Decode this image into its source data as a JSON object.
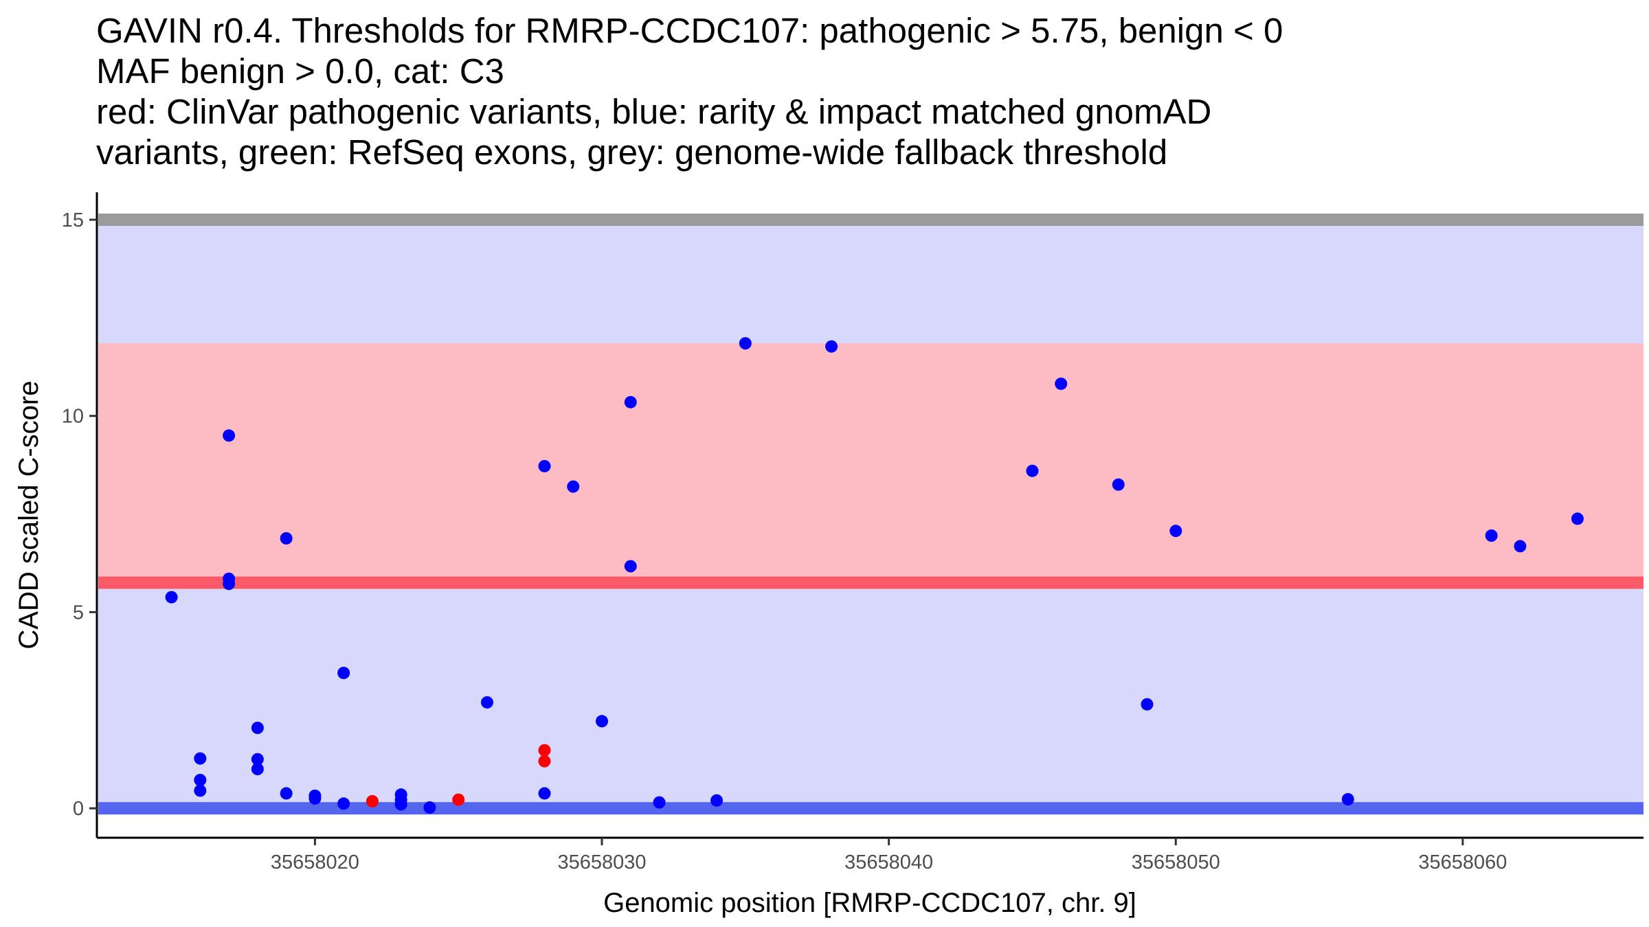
{
  "chart_data": {
    "type": "scatter",
    "title_lines": [
      "GAVIN r0.4. Thresholds for RMRP-CCDC107: pathogenic > 5.75, benign < 0",
      "MAF benign > 0.0, cat: C3",
      "red: ClinVar pathogenic variants, blue: rarity & impact matched gnomAD",
      "variants, green: RefSeq exons, grey: genome-wide fallback threshold"
    ],
    "xlabel": "Genomic position [RMRP-CCDC107, chr. 9]",
    "ylabel": "CADD scaled C-score",
    "xlim": [
      35658012.4,
      35658066.3
    ],
    "ylim": [
      -0.75,
      15.7
    ],
    "x_ticks": [
      35658020,
      35658030,
      35658040,
      35658050,
      35658060
    ],
    "x_tick_labels": [
      "35658020",
      "35658030",
      "35658040",
      "35658050",
      "35658060"
    ],
    "y_ticks": [
      0,
      5,
      10,
      15
    ],
    "y_tick_labels": [
      "0",
      "5",
      "10",
      "15"
    ],
    "bands": [
      {
        "name": "benign-zone",
        "y_from": 0,
        "y_to": 15,
        "color": "#d7d8fb"
      },
      {
        "name": "pathogenic-range",
        "y_from": 5.75,
        "y_to": 11.85,
        "color": "#fdbcc4"
      }
    ],
    "threshold_lines": [
      {
        "name": "genome-wide-fallback-threshold",
        "y": 15,
        "color": "#9b9b9b"
      },
      {
        "name": "pathogenic-threshold",
        "y": 5.75,
        "color": "#fc5a69"
      },
      {
        "name": "benign-threshold",
        "y": 0,
        "color": "#5566ee"
      }
    ],
    "series": [
      {
        "name": "ClinVar pathogenic variants",
        "color": "#ff0000",
        "points": [
          {
            "x": 35658022,
            "y": 0.18
          },
          {
            "x": 35658025,
            "y": 0.22
          },
          {
            "x": 35658028,
            "y": 1.48
          },
          {
            "x": 35658028,
            "y": 1.2
          }
        ]
      },
      {
        "name": "rarity & impact matched gnomAD variants",
        "color": "#0000ff",
        "points": [
          {
            "x": 35658015,
            "y": 5.38
          },
          {
            "x": 35658016,
            "y": 1.27
          },
          {
            "x": 35658016,
            "y": 0.72
          },
          {
            "x": 35658016,
            "y": 0.45
          },
          {
            "x": 35658017,
            "y": 9.5
          },
          {
            "x": 35658017,
            "y": 5.85
          },
          {
            "x": 35658017,
            "y": 5.72
          },
          {
            "x": 35658018,
            "y": 2.05
          },
          {
            "x": 35658018,
            "y": 1.25
          },
          {
            "x": 35658018,
            "y": 1.0
          },
          {
            "x": 35658019,
            "y": 6.88
          },
          {
            "x": 35658019,
            "y": 0.38
          },
          {
            "x": 35658020,
            "y": 0.32
          },
          {
            "x": 35658020,
            "y": 0.25
          },
          {
            "x": 35658021,
            "y": 3.45
          },
          {
            "x": 35658021,
            "y": 0.12
          },
          {
            "x": 35658023,
            "y": 0.35
          },
          {
            "x": 35658023,
            "y": 0.22
          },
          {
            "x": 35658023,
            "y": 0.1
          },
          {
            "x": 35658024,
            "y": 0.02
          },
          {
            "x": 35658026,
            "y": 2.7
          },
          {
            "x": 35658028,
            "y": 8.72
          },
          {
            "x": 35658028,
            "y": 0.38
          },
          {
            "x": 35658029,
            "y": 8.2
          },
          {
            "x": 35658030,
            "y": 2.22
          },
          {
            "x": 35658031,
            "y": 10.35
          },
          {
            "x": 35658031,
            "y": 6.17
          },
          {
            "x": 35658032,
            "y": 0.15
          },
          {
            "x": 35658034,
            "y": 0.2
          },
          {
            "x": 35658035,
            "y": 11.85
          },
          {
            "x": 35658038,
            "y": 11.77
          },
          {
            "x": 35658045,
            "y": 8.6
          },
          {
            "x": 35658046,
            "y": 10.82
          },
          {
            "x": 35658048,
            "y": 8.25
          },
          {
            "x": 35658049,
            "y": 2.65
          },
          {
            "x": 35658050,
            "y": 7.07
          },
          {
            "x": 35658056,
            "y": 0.23
          },
          {
            "x": 35658061,
            "y": 6.95
          },
          {
            "x": 35658062,
            "y": 6.68
          },
          {
            "x": 35658064,
            "y": 7.38
          }
        ]
      }
    ]
  }
}
